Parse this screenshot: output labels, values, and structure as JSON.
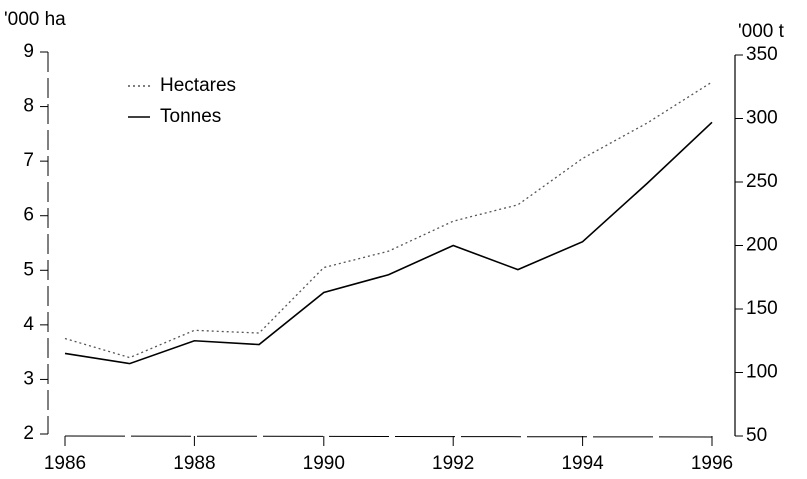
{
  "chart_data": {
    "type": "line",
    "ylabel": "'000 ha",
    "y2label": "'000 t",
    "x": [
      1986,
      1987,
      1988,
      1989,
      1990,
      1991,
      1992,
      1993,
      1994,
      1995,
      1996
    ],
    "xlim": [
      1986,
      1996
    ],
    "xticks": [
      1986,
      1988,
      1990,
      1992,
      1994,
      1996
    ],
    "ylim": [
      2,
      9
    ],
    "yticks": [
      2,
      3,
      4,
      5,
      6,
      7,
      8,
      9
    ],
    "y2lim": [
      50,
      350
    ],
    "y2ticks": [
      50,
      100,
      150,
      200,
      250,
      300,
      350
    ],
    "legend": "upper left",
    "series": [
      {
        "name": "Hectares",
        "color": "#555555",
        "style": "dotted",
        "values": [
          3.75,
          3.4,
          3.9,
          3.85,
          5.05,
          5.35,
          5.9,
          6.2,
          7.05,
          7.7,
          8.45
        ]
      },
      {
        "name": "Tonnes",
        "color": "#000000",
        "style": "solid",
        "axis": "y2",
        "values": [
          115,
          107,
          125,
          122,
          163,
          177,
          200,
          181,
          203,
          249,
          297
        ]
      }
    ]
  }
}
